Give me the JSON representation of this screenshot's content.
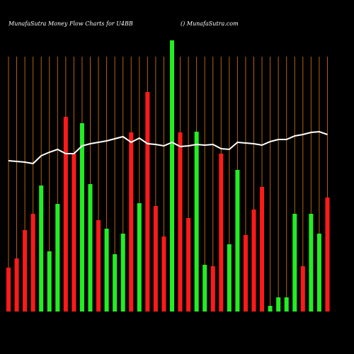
{
  "chart_data": {
    "type": "bar",
    "title": "MunafaSutra  Money Flow  Charts for U4BB",
    "subtitle": "() MunafaSutra.com",
    "ylim": [
      0,
      400
    ],
    "grid": true,
    "grid_color": "#b8620a",
    "line_color": "#ffffff",
    "series": [
      {
        "type": "bar",
        "values": [
          62,
          75,
          115,
          138,
          178,
          85,
          152,
          275,
          223,
          266,
          180,
          129,
          117,
          81,
          110,
          253,
          153,
          310,
          149,
          106,
          383,
          253,
          132,
          254,
          66,
          64,
          223,
          95,
          200,
          108,
          144,
          176,
          8,
          20,
          20,
          138,
          64,
          138,
          110,
          161
        ],
        "colors": [
          "#ff1a1a",
          "#ff1a1a",
          "#ff1a1a",
          "#ff1a1a",
          "#22ee22",
          "#22ee22",
          "#22ee22",
          "#ff1a1a",
          "#ff1a1a",
          "#22ee22",
          "#22ee22",
          "#ff1a1a",
          "#22ee22",
          "#22ee22",
          "#22ee22",
          "#ff1a1a",
          "#22ee22",
          "#ff1a1a",
          "#ff1a1a",
          "#ff1a1a",
          "#22ee22",
          "#ff1a1a",
          "#ff1a1a",
          "#22ee22",
          "#22ee22",
          "#ff1a1a",
          "#ff1a1a",
          "#22ee22",
          "#22ee22",
          "#ff1a1a",
          "#ff1a1a",
          "#ff1a1a",
          "#22ee22",
          "#22ee22",
          "#22ee22",
          "#22ee22",
          "#ff1a1a",
          "#22ee22",
          "#22ee22",
          "#ff1a1a"
        ]
      },
      {
        "type": "line",
        "values": [
          213,
          212,
          211,
          209,
          220,
          225,
          229,
          223,
          223,
          234,
          237,
          239,
          241,
          244,
          247,
          239,
          245,
          237,
          236,
          234,
          239,
          233,
          234,
          236,
          235,
          236,
          230,
          229,
          239,
          238,
          237,
          235,
          240,
          243,
          243,
          248,
          250,
          253,
          254,
          250
        ]
      }
    ]
  }
}
